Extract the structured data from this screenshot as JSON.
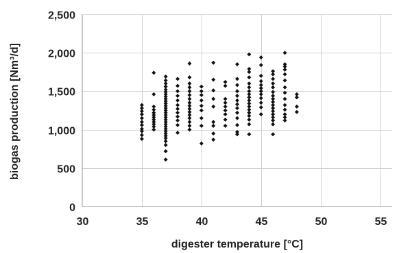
{
  "chart_data": {
    "type": "scatter",
    "title": "",
    "xlabel": "digester temperature [°C]",
    "ylabel": "biogas production [Nm³/d]",
    "xlim": [
      30,
      56
    ],
    "ylim": [
      0,
      2500
    ],
    "x_ticks": [
      "30",
      "35",
      "40",
      "45",
      "50",
      "55"
    ],
    "y_ticks": [
      "0",
      "500",
      "1,000",
      "1,500",
      "2,000",
      "2,500"
    ],
    "grid": true,
    "legend": "none",
    "marker": "diamond",
    "marker_color": "#111111",
    "series": [
      {
        "points": [
          [
            35,
            880
          ],
          [
            35,
            930
          ],
          [
            35,
            980
          ],
          [
            35,
            1010
          ],
          [
            35,
            1060
          ],
          [
            35,
            1100
          ],
          [
            35,
            1150
          ],
          [
            35,
            1200
          ],
          [
            35,
            1240
          ],
          [
            35,
            1280
          ],
          [
            35,
            1320
          ],
          [
            36,
            1000
          ],
          [
            36,
            1040
          ],
          [
            36,
            1070
          ],
          [
            36,
            1100
          ],
          [
            36,
            1130
          ],
          [
            36,
            1160
          ],
          [
            36,
            1190
          ],
          [
            36,
            1220
          ],
          [
            36,
            1260
          ],
          [
            36,
            1300
          ],
          [
            36,
            1460
          ],
          [
            36,
            1740
          ],
          [
            37,
            610
          ],
          [
            37,
            720
          ],
          [
            37,
            800
          ],
          [
            37,
            850
          ],
          [
            37,
            890
          ],
          [
            37,
            920
          ],
          [
            37,
            950
          ],
          [
            37,
            980
          ],
          [
            37,
            1010
          ],
          [
            37,
            1040
          ],
          [
            37,
            1070
          ],
          [
            37,
            1100
          ],
          [
            37,
            1130
          ],
          [
            37,
            1160
          ],
          [
            37,
            1190
          ],
          [
            37,
            1220
          ],
          [
            37,
            1250
          ],
          [
            37,
            1280
          ],
          [
            37,
            1310
          ],
          [
            37,
            1340
          ],
          [
            37,
            1370
          ],
          [
            37,
            1400
          ],
          [
            37,
            1430
          ],
          [
            37,
            1460
          ],
          [
            37,
            1490
          ],
          [
            37,
            1520
          ],
          [
            37,
            1560
          ],
          [
            37,
            1600
          ],
          [
            37,
            1640
          ],
          [
            37,
            1690
          ],
          [
            38,
            960
          ],
          [
            38,
            1060
          ],
          [
            38,
            1120
          ],
          [
            38,
            1170
          ],
          [
            38,
            1220
          ],
          [
            38,
            1270
          ],
          [
            38,
            1320
          ],
          [
            38,
            1380
          ],
          [
            38,
            1440
          ],
          [
            38,
            1500
          ],
          [
            38,
            1570
          ],
          [
            38,
            1660
          ],
          [
            39,
            1000
          ],
          [
            39,
            1050
          ],
          [
            39,
            1100
          ],
          [
            39,
            1150
          ],
          [
            39,
            1190
          ],
          [
            39,
            1230
          ],
          [
            39,
            1270
          ],
          [
            39,
            1310
          ],
          [
            39,
            1350
          ],
          [
            39,
            1400
          ],
          [
            39,
            1450
          ],
          [
            39,
            1500
          ],
          [
            39,
            1550
          ],
          [
            39,
            1600
          ],
          [
            39,
            1680
          ],
          [
            39,
            1860
          ],
          [
            40,
            820
          ],
          [
            40,
            1050
          ],
          [
            40,
            1150
          ],
          [
            40,
            1250
          ],
          [
            40,
            1310
          ],
          [
            40,
            1380
          ],
          [
            40,
            1450
          ],
          [
            40,
            1500
          ],
          [
            40,
            1560
          ],
          [
            41,
            870
          ],
          [
            41,
            950
          ],
          [
            41,
            1050
          ],
          [
            41,
            1100
          ],
          [
            41,
            1300
          ],
          [
            41,
            1400
          ],
          [
            41,
            1510
          ],
          [
            41,
            1650
          ],
          [
            41,
            1870
          ],
          [
            42,
            1050
          ],
          [
            42,
            1130
          ],
          [
            42,
            1200
          ],
          [
            42,
            1250
          ],
          [
            42,
            1300
          ],
          [
            42,
            1350
          ],
          [
            42,
            1400
          ],
          [
            42,
            1570
          ],
          [
            42,
            1620
          ],
          [
            43,
            940
          ],
          [
            43,
            970
          ],
          [
            43,
            1060
          ],
          [
            43,
            1150
          ],
          [
            43,
            1220
          ],
          [
            43,
            1280
          ],
          [
            43,
            1330
          ],
          [
            43,
            1380
          ],
          [
            43,
            1440
          ],
          [
            43,
            1500
          ],
          [
            43,
            1580
          ],
          [
            43,
            1660
          ],
          [
            43,
            1850
          ],
          [
            44,
            940
          ],
          [
            44,
            1070
          ],
          [
            44,
            1130
          ],
          [
            44,
            1180
          ],
          [
            44,
            1220
          ],
          [
            44,
            1260
          ],
          [
            44,
            1300
          ],
          [
            44,
            1340
          ],
          [
            44,
            1380
          ],
          [
            44,
            1420
          ],
          [
            44,
            1460
          ],
          [
            44,
            1500
          ],
          [
            44,
            1550
          ],
          [
            44,
            1600
          ],
          [
            44,
            1680
          ],
          [
            44,
            1750
          ],
          [
            44,
            1790
          ],
          [
            44,
            1980
          ],
          [
            45,
            1200
          ],
          [
            45,
            1290
          ],
          [
            45,
            1350
          ],
          [
            45,
            1410
          ],
          [
            45,
            1460
          ],
          [
            45,
            1500
          ],
          [
            45,
            1540
          ],
          [
            45,
            1580
          ],
          [
            45,
            1630
          ],
          [
            45,
            1700
          ],
          [
            45,
            1840
          ],
          [
            45,
            1940
          ],
          [
            46,
            940
          ],
          [
            46,
            1070
          ],
          [
            46,
            1120
          ],
          [
            46,
            1160
          ],
          [
            46,
            1200
          ],
          [
            46,
            1240
          ],
          [
            46,
            1280
          ],
          [
            46,
            1320
          ],
          [
            46,
            1360
          ],
          [
            46,
            1400
          ],
          [
            46,
            1440
          ],
          [
            46,
            1490
          ],
          [
            46,
            1550
          ],
          [
            46,
            1600
          ],
          [
            46,
            1660
          ],
          [
            46,
            1720
          ],
          [
            46,
            1760
          ],
          [
            47,
            1120
          ],
          [
            47,
            1160
          ],
          [
            47,
            1200
          ],
          [
            47,
            1260
          ],
          [
            47,
            1320
          ],
          [
            47,
            1400
          ],
          [
            47,
            1480
          ],
          [
            47,
            1550
          ],
          [
            47,
            1640
          ],
          [
            47,
            1720
          ],
          [
            47,
            1780
          ],
          [
            47,
            1820
          ],
          [
            47,
            1850
          ],
          [
            47,
            2000
          ],
          [
            48,
            1230
          ],
          [
            48,
            1300
          ],
          [
            48,
            1420
          ],
          [
            48,
            1460
          ]
        ]
      }
    ]
  }
}
